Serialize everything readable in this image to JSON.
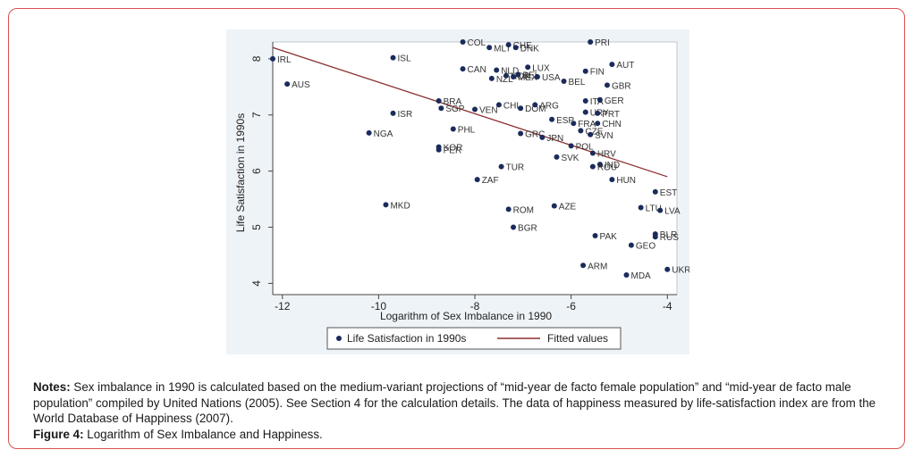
{
  "chart_data": {
    "type": "scatter",
    "xlabel": "Logarithm of Sex Imbalance in 1990",
    "ylabel": "Life Satisfaction in 1990s",
    "xlim": [
      -12.2,
      -3.8
    ],
    "ylim": [
      3.8,
      8.3
    ],
    "x_ticks": [
      "-12",
      "-10",
      "-8",
      "-6",
      "-4"
    ],
    "x_tick_values": [
      -12,
      -10,
      -8,
      -6,
      -4
    ],
    "y_ticks": [
      "4",
      "5",
      "6",
      "7",
      "8"
    ],
    "y_tick_values": [
      4,
      5,
      6,
      7,
      8
    ],
    "legend": {
      "placement": "bottom",
      "items": [
        "Life Satisfaction in 1990s",
        "Fitted values"
      ]
    },
    "colors": {
      "points": "#1a2b5c",
      "fit_line": "#8b2f2f",
      "plot_bg": "#eef3f7",
      "axis": "#444444"
    },
    "fitted_line": {
      "x": [
        -12.2,
        -4.0
      ],
      "y": [
        8.2,
        5.9
      ]
    },
    "series": [
      {
        "name": "Life Satisfaction in 1990s",
        "points": [
          {
            "label": "IRL",
            "x": -12.2,
            "y": 8.0
          },
          {
            "label": "AUS",
            "x": -11.9,
            "y": 7.55
          },
          {
            "label": "ISL",
            "x": -9.7,
            "y": 8.02
          },
          {
            "label": "ISR",
            "x": -9.7,
            "y": 7.03
          },
          {
            "label": "NGA",
            "x": -10.2,
            "y": 6.68
          },
          {
            "label": "MKD",
            "x": -9.85,
            "y": 5.4
          },
          {
            "label": "COL",
            "x": -8.25,
            "y": 8.3
          },
          {
            "label": "MLT",
            "x": -7.7,
            "y": 8.2
          },
          {
            "label": "CHE",
            "x": -7.3,
            "y": 8.25
          },
          {
            "label": "DNK",
            "x": -7.15,
            "y": 8.2
          },
          {
            "label": "PRI",
            "x": -5.6,
            "y": 8.3
          },
          {
            "label": "CAN",
            "x": -8.25,
            "y": 7.82
          },
          {
            "label": "NLD",
            "x": -7.55,
            "y": 7.8
          },
          {
            "label": "NOR",
            "x": -7.35,
            "y": 7.7
          },
          {
            "label": "BEL",
            "x": -7.1,
            "y": 7.72
          },
          {
            "label": "NZL",
            "x": -7.65,
            "y": 7.65
          },
          {
            "label": "MEX",
            "x": -7.2,
            "y": 7.68
          },
          {
            "label": "LUX",
            "x": -6.9,
            "y": 7.85
          },
          {
            "label": "USA",
            "x": -6.7,
            "y": 7.68
          },
          {
            "label": "FIN",
            "x": -5.7,
            "y": 7.78
          },
          {
            "label": "AUT",
            "x": -5.15,
            "y": 7.9
          },
          {
            "label": "BEL",
            "x": -6.15,
            "y": 7.6
          },
          {
            "label": "GBR",
            "x": -5.25,
            "y": 7.53
          },
          {
            "label": "BRA",
            "x": -8.75,
            "y": 7.25
          },
          {
            "label": "SGP",
            "x": -8.7,
            "y": 7.12
          },
          {
            "label": "VEN",
            "x": -8.0,
            "y": 7.1
          },
          {
            "label": "CHL",
            "x": -7.5,
            "y": 7.18
          },
          {
            "label": "DOM",
            "x": -7.05,
            "y": 7.12
          },
          {
            "label": "ARG",
            "x": -6.75,
            "y": 7.18
          },
          {
            "label": "ITA",
            "x": -5.7,
            "y": 7.25
          },
          {
            "label": "GER",
            "x": -5.4,
            "y": 7.27
          },
          {
            "label": "URY",
            "x": -5.7,
            "y": 7.05
          },
          {
            "label": "PRT",
            "x": -5.45,
            "y": 7.03
          },
          {
            "label": "ESP",
            "x": -6.4,
            "y": 6.92
          },
          {
            "label": "FRA",
            "x": -5.95,
            "y": 6.85
          },
          {
            "label": "CHN",
            "x": -5.45,
            "y": 6.85
          },
          {
            "label": "CZE",
            "x": -5.8,
            "y": 6.72
          },
          {
            "label": "SVN",
            "x": -5.6,
            "y": 6.65
          },
          {
            "label": "PHL",
            "x": -8.45,
            "y": 6.75
          },
          {
            "label": "GRC",
            "x": -7.05,
            "y": 6.67
          },
          {
            "label": "JPN",
            "x": -6.6,
            "y": 6.6
          },
          {
            "label": "KOR",
            "x": -8.75,
            "y": 6.43
          },
          {
            "label": "PER",
            "x": -8.75,
            "y": 6.38
          },
          {
            "label": "POL",
            "x": -6.0,
            "y": 6.45
          },
          {
            "label": "HRV",
            "x": -5.55,
            "y": 6.32
          },
          {
            "label": "SVK",
            "x": -6.3,
            "y": 6.25
          },
          {
            "label": "IND",
            "x": -5.4,
            "y": 6.12
          },
          {
            "label": "ROU",
            "x": -5.55,
            "y": 6.08
          },
          {
            "label": "TUR",
            "x": -7.45,
            "y": 6.08
          },
          {
            "label": "ZAF",
            "x": -7.95,
            "y": 5.85
          },
          {
            "label": "HUN",
            "x": -5.15,
            "y": 5.85
          },
          {
            "label": "EST",
            "x": -4.25,
            "y": 5.63
          },
          {
            "label": "ROM",
            "x": -7.3,
            "y": 5.32
          },
          {
            "label": "AZE",
            "x": -6.35,
            "y": 5.38
          },
          {
            "label": "LTU",
            "x": -4.55,
            "y": 5.35
          },
          {
            "label": "LVA",
            "x": -4.15,
            "y": 5.3
          },
          {
            "label": "BGR",
            "x": -7.2,
            "y": 5.0
          },
          {
            "label": "PAK",
            "x": -5.5,
            "y": 4.85
          },
          {
            "label": "BLR",
            "x": -4.25,
            "y": 4.88
          },
          {
            "label": "RUS",
            "x": -4.25,
            "y": 4.83
          },
          {
            "label": "GEO",
            "x": -4.75,
            "y": 4.68
          },
          {
            "label": "ARM",
            "x": -5.75,
            "y": 4.32
          },
          {
            "label": "MDA",
            "x": -4.85,
            "y": 4.15
          },
          {
            "label": "UKR",
            "x": -4.0,
            "y": 4.25
          }
        ]
      }
    ]
  },
  "notes": {
    "notes_label": "Notes:",
    "notes_text": " Sex imbalance in 1990 is calculated based on the medium-variant projections of “mid-year de facto female population” and “mid-year de facto male population” compiled by United Nations (2005). See Section 4 for the calculation details. The data of happiness measured by life-satisfaction index are from the World Database of Happiness (2007).",
    "figure_label": "Figure 4:",
    "figure_text": " Logarithm of Sex Imbalance and Happiness."
  }
}
